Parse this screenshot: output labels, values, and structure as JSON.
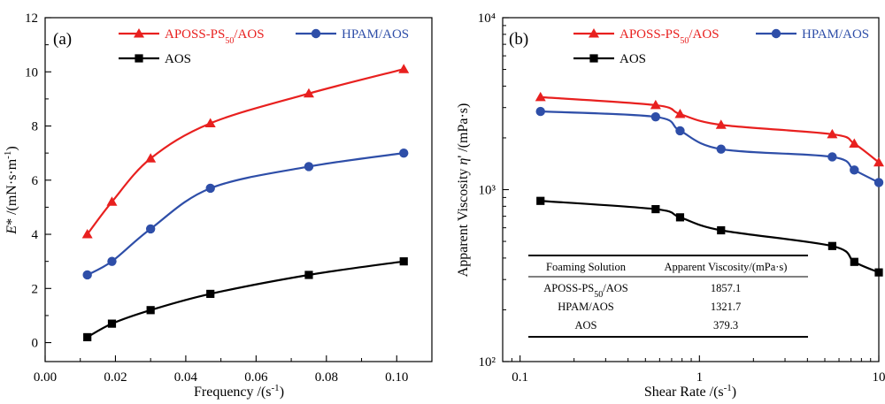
{
  "chart_data": [
    {
      "type": "line",
      "panel_label": "(a)",
      "xlabel": "Frequency /(s⁻¹)",
      "ylabel": "E* /(mN·s·m⁻¹)",
      "xlim": [
        0.0,
        0.11
      ],
      "ylim": [
        -0.7,
        12
      ],
      "x_ticks": [
        0.0,
        0.02,
        0.04,
        0.06,
        0.08,
        0.1
      ],
      "x_tick_labels": [
        "0.00",
        "0.02",
        "0.04",
        "0.06",
        "0.08",
        "0.10"
      ],
      "y_ticks": [
        0,
        2,
        4,
        6,
        8,
        10,
        12
      ],
      "y_tick_labels": [
        "0",
        "2",
        "4",
        "6",
        "8",
        "10",
        "12"
      ],
      "x_scale": "linear",
      "y_scale": "linear",
      "grid": false,
      "legend_placement": "top",
      "series": [
        {
          "name": "APOSS-PS50/AOS",
          "color": "#e8201f",
          "marker": "triangle",
          "x": [
            0.012,
            0.019,
            0.03,
            0.047,
            0.075,
            0.102
          ],
          "y": [
            4.0,
            5.2,
            6.8,
            8.1,
            9.2,
            10.1
          ]
        },
        {
          "name": "HPAM/AOS",
          "color": "#2e4ea8",
          "marker": "circle",
          "x": [
            0.012,
            0.019,
            0.03,
            0.047,
            0.075,
            0.102
          ],
          "y": [
            2.5,
            3.0,
            4.2,
            5.7,
            6.5,
            7.0
          ]
        },
        {
          "name": "AOS",
          "color": "#000000",
          "marker": "square",
          "x": [
            0.012,
            0.019,
            0.03,
            0.047,
            0.075,
            0.102
          ],
          "y": [
            0.2,
            0.7,
            1.2,
            1.8,
            2.5,
            3.0
          ]
        }
      ]
    },
    {
      "type": "line",
      "panel_label": "(b)",
      "xlabel": "Shear Rate /(s⁻¹)",
      "ylabel": "Apparent Viscosity η' /(mPa·s)",
      "xlim": [
        0.08,
        10
      ],
      "ylim": [
        100,
        10000
      ],
      "x_ticks": [
        0.1,
        1,
        10
      ],
      "x_tick_labels": [
        "0.1",
        "1",
        "10"
      ],
      "y_ticks": [
        100,
        1000,
        10000
      ],
      "y_tick_labels": [
        "10²",
        "10³",
        "10⁴"
      ],
      "x_scale": "log",
      "y_scale": "log",
      "grid": false,
      "legend_placement": "top",
      "series": [
        {
          "name": "APOSS-PS50/AOS",
          "color": "#e8201f",
          "marker": "triangle",
          "x": [
            0.13,
            0.57,
            0.78,
            1.32,
            5.5,
            7.3,
            10.0
          ],
          "y": [
            3450,
            3100,
            2750,
            2380,
            2100,
            1850,
            1440
          ]
        },
        {
          "name": "HPAM/AOS",
          "color": "#2e4ea8",
          "marker": "circle",
          "x": [
            0.13,
            0.57,
            0.78,
            1.32,
            5.5,
            7.3,
            10.0
          ],
          "y": [
            2850,
            2650,
            2200,
            1720,
            1550,
            1300,
            1100
          ]
        },
        {
          "name": "AOS",
          "color": "#000000",
          "marker": "square",
          "x": [
            0.13,
            0.57,
            0.78,
            1.32,
            5.5,
            7.3,
            10.0
          ],
          "y": [
            860,
            770,
            690,
            580,
            470,
            380,
            330
          ]
        }
      ],
      "table": {
        "headers": [
          "Foaming Solution",
          "Apparent Viscosity/(mPa·s)"
        ],
        "rows": [
          [
            "APOSS-PS50/AOS",
            "1857.1"
          ],
          [
            "HPAM/AOS",
            "1321.7"
          ],
          [
            "AOS",
            "379.3"
          ]
        ]
      }
    }
  ]
}
